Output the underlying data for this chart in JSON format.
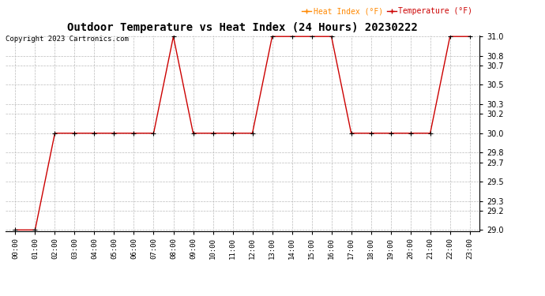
{
  "title": "Outdoor Temperature vs Heat Index (24 Hours) 20230222",
  "copyright_text": "Copyright 2023 Cartronics.com",
  "legend_heat_index": "Heat Index (°F)",
  "legend_temperature": "Temperature (°F)",
  "x_labels": [
    "00:00",
    "01:00",
    "02:00",
    "03:00",
    "04:00",
    "05:00",
    "06:00",
    "07:00",
    "08:00",
    "09:00",
    "10:00",
    "11:00",
    "12:00",
    "13:00",
    "14:00",
    "15:00",
    "16:00",
    "17:00",
    "18:00",
    "19:00",
    "20:00",
    "21:00",
    "22:00",
    "23:00"
  ],
  "temp_data": [
    29.0,
    29.0,
    30.0,
    30.0,
    30.0,
    30.0,
    30.0,
    30.0,
    31.0,
    30.0,
    30.0,
    30.0,
    30.0,
    31.0,
    31.0,
    31.0,
    31.0,
    30.0,
    30.0,
    30.0,
    30.0,
    30.0,
    31.0,
    31.0
  ],
  "ylim_min": 29.0,
  "ylim_max": 31.0,
  "y_ticks": [
    29.0,
    29.2,
    29.3,
    29.5,
    29.7,
    29.8,
    30.0,
    30.2,
    30.3,
    30.5,
    30.7,
    30.8,
    31.0
  ],
  "line_color": "#cc0000",
  "marker_color": "#000000",
  "title_fontsize": 10,
  "bg_color": "#ffffff",
  "grid_color": "#bbbbbb",
  "legend_heat_color": "#ff8800",
  "legend_temp_color": "#cc0000"
}
